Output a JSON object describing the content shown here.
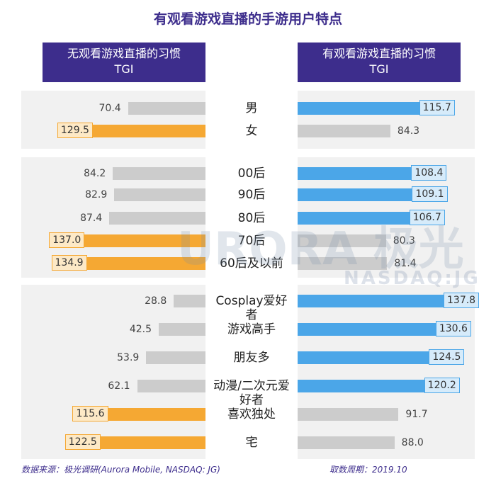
{
  "chart_data": {
    "type": "butterfly_bar",
    "title": "有观看游戏直播的手游用户特点",
    "metric": "TGI",
    "categories": [
      "男",
      "女",
      "00后",
      "90后",
      "80后",
      "70后",
      "60后及以前",
      "Cosplay爱好者",
      "游戏高手",
      "朋友多",
      "动漫/二次元爱好者",
      "喜欢独处",
      "宅"
    ],
    "series": [
      {
        "name": "无观看游戏直播的习惯",
        "side": "left",
        "values": [
          70.4,
          129.5,
          84.2,
          82.9,
          87.4,
          137.0,
          134.9,
          28.8,
          42.5,
          53.9,
          62.1,
          115.6,
          122.5
        ],
        "value_labels": [
          "70.4",
          "129.5",
          "84.2",
          "82.9",
          "87.4",
          "137.0",
          "134.9",
          "28.8",
          "42.5",
          "53.9",
          "62.1",
          "115.6",
          "122.5"
        ],
        "colors": [
          "#cccccc",
          "#f5a833",
          "#cccccc",
          "#cccccc",
          "#cccccc",
          "#f5a833",
          "#f5a833",
          "#cccccc",
          "#cccccc",
          "#cccccc",
          "#cccccc",
          "#f5a833",
          "#f5a833"
        ]
      },
      {
        "name": "有观看游戏直播的习惯",
        "side": "right",
        "values": [
          115.7,
          84.3,
          108.4,
          109.1,
          106.7,
          80.3,
          81.4,
          137.8,
          130.6,
          124.5,
          120.2,
          91.7,
          88.0
        ],
        "value_labels": [
          "115.7",
          "84.3",
          "108.4",
          "109.1",
          "106.7",
          "80.3",
          "81.4",
          "137.8",
          "130.6",
          "124.5",
          "120.2",
          "91.7",
          "88.0"
        ],
        "colors": [
          "#4ba6e8",
          "#cccccc",
          "#4ba6e8",
          "#4ba6e8",
          "#4ba6e8",
          "#cccccc",
          "#cccccc",
          "#4ba6e8",
          "#4ba6e8",
          "#4ba6e8",
          "#4ba6e8",
          "#cccccc",
          "#cccccc"
        ]
      }
    ],
    "watermark": "URORA 极光",
    "watermark_sub": "NASDAQ:JG",
    "source": "数据来源：极光调研(Aurora Mobile, NASDAQ: JG)",
    "period": "取数周期：2019.10"
  }
}
